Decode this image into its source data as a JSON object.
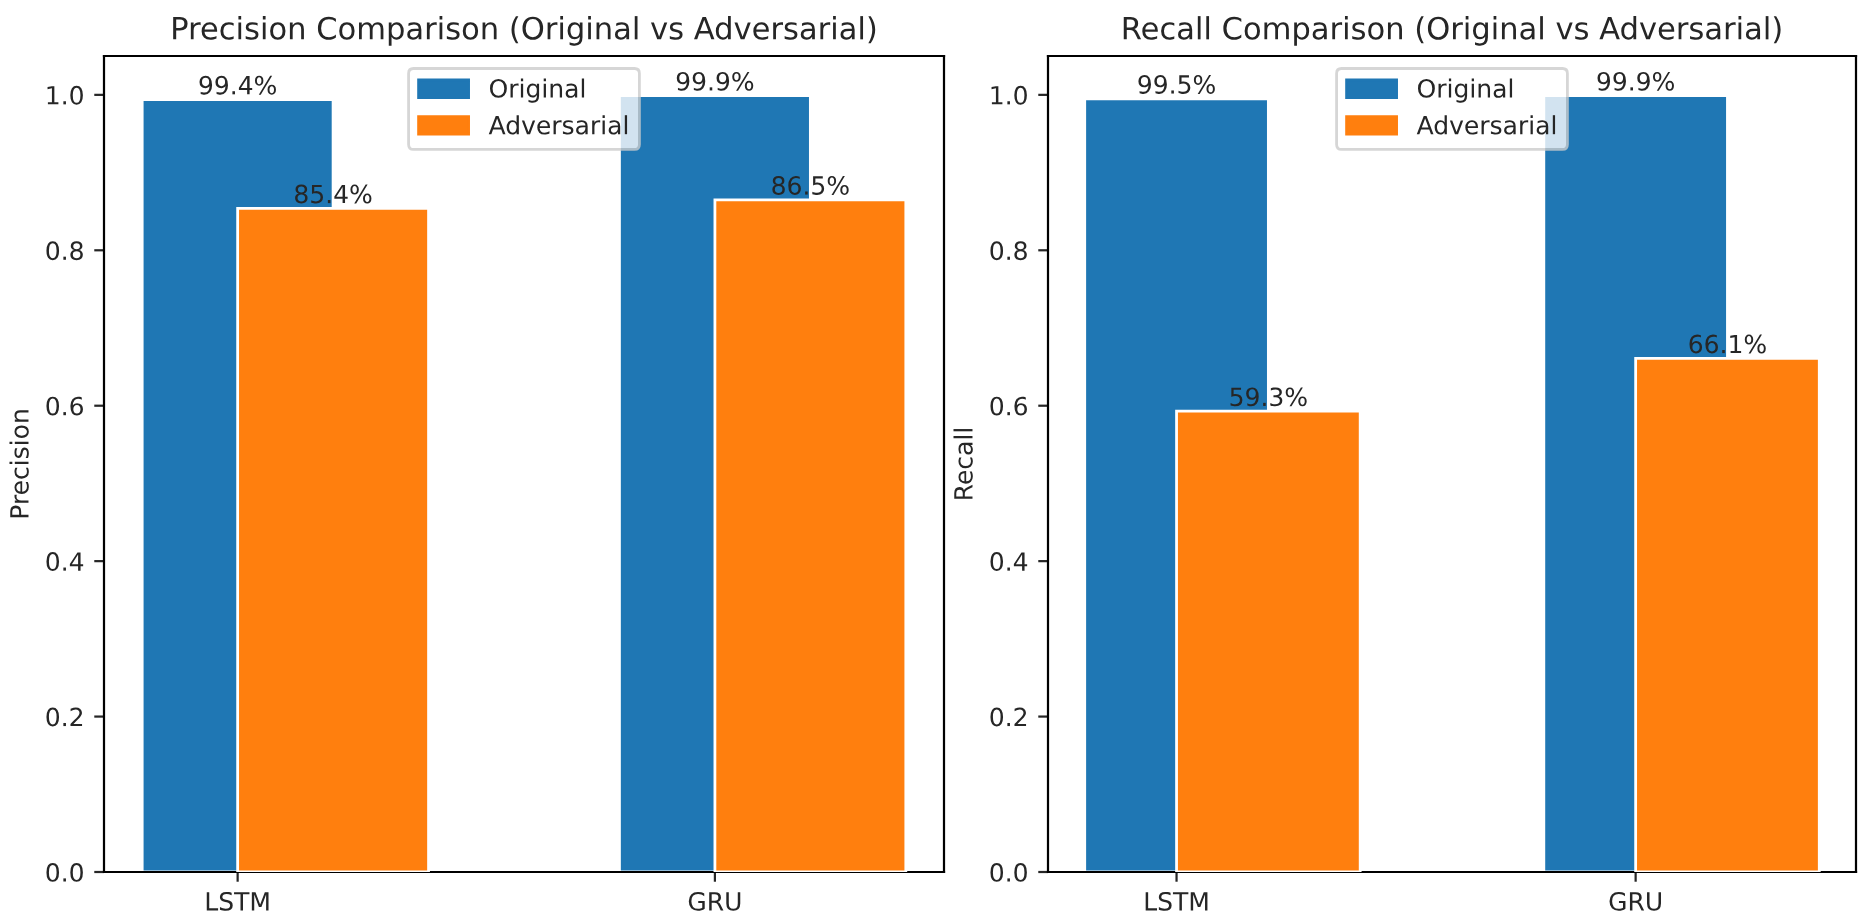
{
  "chart_data": [
    {
      "type": "bar",
      "title": "Precision Comparison (Original vs Adversarial)",
      "ylabel": "Precision",
      "categories": [
        "LSTM",
        "GRU"
      ],
      "series": [
        {
          "name": "Original",
          "color": "#1f77b4",
          "values": [
            0.994,
            0.999
          ],
          "value_labels": [
            "99.4%",
            "99.9%"
          ]
        },
        {
          "name": "Adversarial",
          "color": "#ff7f0e",
          "values": [
            0.854,
            0.865
          ],
          "value_labels": [
            "85.4%",
            "86.5%"
          ]
        }
      ],
      "ylim": [
        0,
        1.05
      ],
      "yticks": [
        {
          "value": 0,
          "label": "0.0"
        },
        {
          "value": 0.2,
          "label": "0.2"
        },
        {
          "value": 0.4,
          "label": "0.4"
        },
        {
          "value": 0.6,
          "label": "0.6"
        },
        {
          "value": 0.8,
          "label": "0.8"
        },
        {
          "value": 1,
          "label": "1.0"
        }
      ],
      "legend": "top",
      "grid": false
    },
    {
      "type": "bar",
      "title": "Recall Comparison (Original vs Adversarial)",
      "ylabel": "Recall",
      "categories": [
        "LSTM",
        "GRU"
      ],
      "series": [
        {
          "name": "Original",
          "color": "#1f77b4",
          "values": [
            0.995,
            0.999
          ],
          "value_labels": [
            "99.5%",
            "99.9%"
          ]
        },
        {
          "name": "Adversarial",
          "color": "#ff7f0e",
          "values": [
            0.593,
            0.661
          ],
          "value_labels": [
            "59.3%",
            "66.1%"
          ]
        }
      ],
      "ylim": [
        0,
        1.05
      ],
      "yticks": [
        {
          "value": 0,
          "label": "0.0"
        },
        {
          "value": 0.2,
          "label": "0.2"
        },
        {
          "value": 0.4,
          "label": "0.4"
        },
        {
          "value": 0.6,
          "label": "0.6"
        },
        {
          "value": 0.8,
          "label": "0.8"
        },
        {
          "value": 1,
          "label": "1.0"
        }
      ],
      "legend": "top",
      "grid": false
    }
  ]
}
